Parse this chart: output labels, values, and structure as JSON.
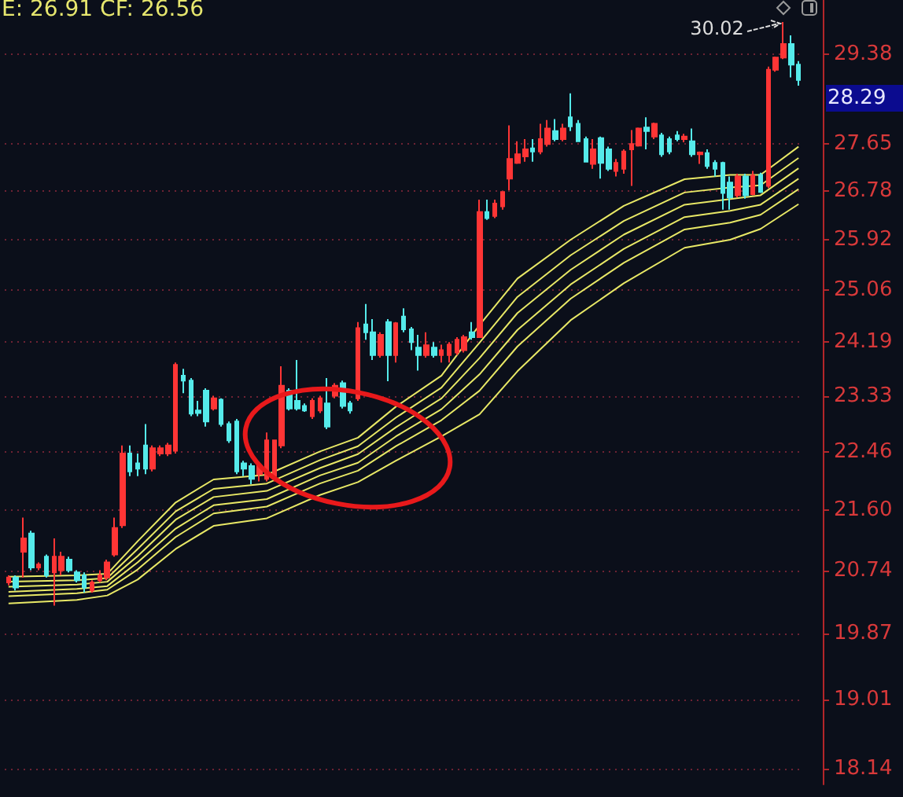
{
  "chart_data": {
    "type": "candlestick",
    "log": true,
    "grid": "y",
    "marker": "none",
    "categories": [
      null,
      null,
      null,
      null,
      null,
      null,
      null,
      null,
      null,
      null,
      null,
      null,
      null,
      null,
      null,
      null,
      null,
      null,
      null,
      null,
      null,
      null,
      null,
      null,
      null,
      null,
      null,
      null,
      null,
      null,
      null,
      null,
      null,
      null,
      null,
      null,
      null,
      null,
      null,
      null,
      null,
      null,
      null,
      null,
      null,
      null,
      null,
      null,
      null,
      null,
      null,
      null,
      null,
      null,
      null,
      null,
      null,
      null,
      null,
      null,
      null,
      null,
      null,
      null,
      null,
      null,
      null,
      null,
      null,
      null,
      null,
      null,
      null,
      null,
      null,
      null,
      null,
      null,
      null,
      null,
      null,
      null,
      null,
      null,
      null,
      null,
      null,
      null,
      null,
      null,
      null,
      null,
      null,
      null,
      null,
      null,
      null,
      null,
      null,
      null,
      null,
      null,
      null,
      null,
      null
    ],
    "ohlc": [
      [
        20.57,
        20.67,
        20.53,
        20.64
      ],
      [
        20.64,
        20.67,
        20.46,
        20.5
      ],
      [
        21.0,
        21.49,
        20.64,
        21.19
      ],
      [
        21.26,
        21.3,
        20.74,
        20.78
      ],
      [
        20.78,
        20.85,
        20.74,
        20.82
      ],
      [
        20.93,
        20.96,
        20.64,
        20.67
      ],
      [
        20.71,
        21.19,
        20.25,
        20.93
      ],
      [
        20.74,
        21.0,
        20.67,
        20.93
      ],
      [
        20.89,
        20.93,
        20.71,
        20.74
      ],
      [
        20.71,
        20.74,
        20.57,
        20.6
      ],
      [
        20.67,
        20.71,
        20.43,
        20.5
      ],
      [
        20.46,
        20.6,
        20.43,
        20.57
      ],
      [
        20.6,
        20.74,
        20.57,
        20.67
      ],
      [
        20.64,
        20.89,
        20.6,
        20.85
      ],
      [
        20.96,
        21.49,
        20.93,
        21.34
      ],
      [
        21.38,
        22.56,
        21.34,
        22.44
      ],
      [
        22.44,
        22.56,
        22.1,
        22.17
      ],
      [
        22.29,
        22.44,
        22.1,
        22.21
      ],
      [
        22.56,
        22.89,
        22.13,
        22.21
      ],
      [
        22.21,
        22.56,
        22.17,
        22.52
      ],
      [
        22.44,
        22.56,
        22.4,
        22.52
      ],
      [
        22.44,
        22.6,
        22.4,
        22.56
      ],
      [
        22.48,
        23.86,
        22.44,
        23.82
      ],
      [
        23.65,
        23.76,
        23.37,
        23.57
      ],
      [
        23.57,
        23.61,
        23.01,
        23.05
      ],
      [
        23.1,
        23.25,
        23.01,
        23.06
      ],
      [
        23.41,
        23.45,
        22.85,
        22.93
      ],
      [
        23.13,
        23.33,
        23.1,
        23.29
      ],
      [
        23.27,
        23.29,
        22.85,
        22.89
      ],
      [
        22.89,
        22.93,
        22.6,
        22.64
      ],
      [
        22.93,
        22.97,
        22.13,
        22.17
      ],
      [
        22.29,
        22.33,
        22.1,
        22.21
      ],
      [
        22.25,
        22.29,
        21.98,
        22.06
      ],
      [
        22.13,
        22.29,
        22.02,
        22.25
      ],
      [
        22.06,
        22.76,
        22.02,
        22.64
      ],
      [
        22.1,
        22.64,
        22.02,
        22.64
      ],
      [
        22.56,
        23.8,
        22.52,
        23.49
      ],
      [
        23.41,
        23.45,
        23.1,
        23.13
      ],
      [
        23.25,
        23.9,
        23.1,
        23.13
      ],
      [
        23.17,
        23.21,
        23.08,
        23.1
      ],
      [
        23.01,
        23.29,
        22.97,
        23.25
      ],
      [
        23.1,
        23.33,
        23.06,
        23.29
      ],
      [
        23.21,
        23.61,
        22.81,
        22.85
      ],
      [
        23.33,
        23.53,
        23.29,
        23.49
      ],
      [
        23.53,
        23.57,
        23.13,
        23.17
      ],
      [
        23.21,
        23.25,
        23.05,
        23.1
      ],
      [
        23.29,
        24.52,
        23.25,
        24.42
      ],
      [
        24.48,
        24.82,
        24.23,
        24.35
      ],
      [
        24.35,
        24.57,
        23.9,
        23.98
      ],
      [
        23.98,
        24.35,
        23.94,
        24.31
      ],
      [
        24.52,
        24.57,
        23.56,
        23.98
      ],
      [
        23.98,
        24.52,
        23.86,
        24.5
      ],
      [
        24.61,
        24.75,
        24.35,
        24.4
      ],
      [
        24.4,
        24.44,
        24.06,
        24.19
      ],
      [
        24.1,
        24.31,
        23.73,
        23.98
      ],
      [
        23.98,
        24.35,
        23.94,
        24.14
      ],
      [
        24.1,
        24.19,
        23.94,
        23.98
      ],
      [
        23.98,
        24.15,
        23.86,
        24.06
      ],
      [
        23.98,
        24.19,
        23.86,
        24.15
      ],
      [
        24.02,
        24.27,
        23.98,
        24.23
      ],
      [
        24.06,
        24.31,
        24.02,
        24.27
      ],
      [
        24.35,
        24.52,
        24.23,
        24.27
      ],
      [
        24.27,
        26.63,
        24.27,
        26.41
      ],
      [
        26.41,
        26.63,
        26.27,
        26.3
      ],
      [
        26.34,
        26.63,
        26.3,
        26.56
      ],
      [
        26.51,
        26.77,
        26.45,
        26.77
      ],
      [
        27.01,
        28.0,
        26.8,
        27.37
      ],
      [
        27.3,
        27.7,
        27.28,
        27.46
      ],
      [
        27.42,
        27.74,
        27.32,
        27.55
      ],
      [
        27.57,
        27.74,
        27.32,
        27.51
      ],
      [
        27.51,
        28.03,
        27.46,
        27.74
      ],
      [
        27.65,
        28.1,
        27.6,
        27.94
      ],
      [
        27.89,
        28.12,
        27.7,
        27.74
      ],
      [
        27.74,
        28.03,
        27.7,
        27.94
      ],
      [
        28.15,
        28.61,
        27.89,
        27.98
      ],
      [
        28.03,
        28.1,
        27.7,
        27.7
      ],
      [
        27.74,
        27.79,
        27.32,
        27.32
      ],
      [
        27.28,
        27.74,
        27.19,
        27.55
      ],
      [
        27.76,
        27.79,
        27.01,
        27.3
      ],
      [
        27.55,
        27.6,
        27.15,
        27.19
      ],
      [
        27.15,
        27.37,
        27.05,
        27.3
      ],
      [
        27.19,
        27.55,
        27.1,
        27.51
      ],
      [
        27.55,
        27.91,
        26.88,
        27.65
      ],
      [
        27.62,
        27.96,
        27.6,
        27.94
      ],
      [
        27.96,
        28.15,
        27.55,
        27.89
      ],
      [
        27.79,
        28.05,
        27.74,
        28.03
      ],
      [
        27.81,
        27.86,
        27.41,
        27.46
      ],
      [
        27.74,
        27.79,
        27.46,
        27.51
      ],
      [
        27.81,
        27.89,
        27.7,
        27.74
      ],
      [
        27.74,
        27.84,
        27.68,
        27.79
      ],
      [
        27.7,
        27.94,
        27.41,
        27.46
      ],
      [
        27.46,
        27.51,
        27.28,
        27.49
      ],
      [
        27.48,
        27.55,
        27.19,
        27.24
      ],
      [
        27.3,
        27.35,
        27.05,
        27.19
      ],
      [
        27.3,
        27.32,
        26.45,
        26.75
      ],
      [
        26.94,
        27.05,
        26.45,
        26.67
      ],
      [
        26.71,
        27.1,
        26.67,
        27.05
      ],
      [
        27.05,
        27.1,
        26.65,
        26.71
      ],
      [
        26.73,
        27.15,
        26.71,
        27.07
      ],
      [
        27.08,
        27.12,
        26.75,
        26.77
      ],
      [
        26.88,
        29.13,
        26.84,
        29.07
      ],
      [
        29.07,
        29.33,
        29.03,
        29.31
      ],
      [
        29.31,
        30.02,
        29.28,
        29.58
      ],
      [
        29.58,
        29.75,
        28.92,
        29.17
      ],
      [
        29.17,
        29.24,
        28.76,
        28.87
      ]
    ],
    "series": [
      {
        "type": "line",
        "color": "#e8e866",
        "values": [
          20.65,
          null,
          null,
          null,
          null,
          null,
          null,
          null,
          null,
          20.67,
          null,
          null,
          null,
          20.69,
          null,
          null,
          null,
          21.15,
          null,
          null,
          null,
          null,
          21.71,
          null,
          null,
          null,
          null,
          22.05,
          null,
          null,
          null,
          null,
          null,
          null,
          22.12,
          null,
          null,
          null,
          null,
          null,
          null,
          22.47,
          null,
          null,
          null,
          null,
          22.68,
          null,
          null,
          null,
          null,
          23.16,
          null,
          null,
          null,
          null,
          null,
          23.65,
          null,
          null,
          null,
          null,
          24.47,
          null,
          null,
          null,
          null,
          25.25,
          null,
          null,
          null,
          null,
          null,
          null,
          25.92,
          null,
          null,
          null,
          null,
          null,
          null,
          26.52,
          null,
          null,
          null,
          null,
          null,
          null,
          null,
          27.0,
          null,
          null,
          null,
          null,
          null,
          27.08,
          null,
          null,
          null,
          27.08,
          null,
          null,
          null,
          null,
          27.6
        ]
      },
      {
        "type": "line",
        "color": "#e8e866",
        "values": [
          20.58,
          null,
          null,
          null,
          null,
          null,
          null,
          null,
          null,
          20.6,
          null,
          null,
          null,
          20.63,
          null,
          null,
          null,
          21.04,
          null,
          null,
          null,
          null,
          21.58,
          null,
          null,
          null,
          null,
          21.91,
          null,
          null,
          null,
          null,
          null,
          null,
          21.99,
          null,
          null,
          null,
          null,
          null,
          null,
          22.34,
          null,
          null,
          null,
          null,
          22.55,
          null,
          null,
          null,
          null,
          22.99,
          null,
          null,
          null,
          null,
          null,
          23.46,
          null,
          null,
          null,
          null,
          24.18,
          null,
          null,
          null,
          null,
          24.94,
          null,
          null,
          null,
          null,
          null,
          null,
          25.65,
          null,
          null,
          null,
          null,
          null,
          null,
          26.25,
          null,
          null,
          null,
          null,
          null,
          null,
          null,
          26.76,
          null,
          null,
          null,
          null,
          null,
          26.85,
          null,
          null,
          null,
          26.89,
          null,
          null,
          null,
          null,
          27.39
        ]
      },
      {
        "type": "line",
        "color": "#e8e866",
        "values": [
          20.51,
          null,
          null,
          null,
          null,
          null,
          null,
          null,
          null,
          20.54,
          null,
          null,
          null,
          20.58,
          null,
          null,
          null,
          20.94,
          null,
          null,
          null,
          null,
          21.46,
          null,
          null,
          null,
          null,
          21.79,
          null,
          null,
          null,
          null,
          null,
          null,
          21.88,
          null,
          null,
          null,
          null,
          null,
          null,
          22.22,
          null,
          null,
          null,
          null,
          22.43,
          null,
          null,
          null,
          null,
          22.84,
          null,
          null,
          null,
          null,
          null,
          23.29,
          null,
          null,
          null,
          null,
          23.93,
          null,
          null,
          null,
          null,
          24.67,
          null,
          null,
          null,
          null,
          null,
          null,
          25.4,
          null,
          null,
          null,
          null,
          null,
          null,
          26.01,
          null,
          null,
          null,
          null,
          null,
          null,
          null,
          26.54,
          null,
          null,
          null,
          null,
          null,
          26.64,
          null,
          null,
          null,
          26.71,
          null,
          null,
          null,
          null,
          27.2
        ]
      },
      {
        "type": "line",
        "color": "#e8e866",
        "values": [
          20.44,
          null,
          null,
          null,
          null,
          null,
          null,
          null,
          null,
          20.48,
          null,
          null,
          null,
          20.52,
          null,
          null,
          null,
          20.85,
          null,
          null,
          null,
          null,
          21.33,
          null,
          null,
          null,
          null,
          21.67,
          null,
          null,
          null,
          null,
          null,
          null,
          21.76,
          null,
          null,
          null,
          null,
          null,
          null,
          22.11,
          null,
          null,
          null,
          null,
          22.3,
          null,
          null,
          null,
          null,
          22.7,
          null,
          null,
          null,
          null,
          null,
          23.12,
          null,
          null,
          null,
          null,
          23.67,
          null,
          null,
          null,
          null,
          24.39,
          null,
          null,
          null,
          null,
          null,
          null,
          25.15,
          null,
          null,
          null,
          null,
          null,
          null,
          25.76,
          null,
          null,
          null,
          null,
          null,
          null,
          null,
          26.32,
          null,
          null,
          null,
          null,
          null,
          26.43,
          null,
          null,
          null,
          26.54,
          null,
          null,
          null,
          null,
          27.01
        ]
      },
      {
        "type": "line",
        "color": "#e8e866",
        "values": [
          20.38,
          null,
          null,
          null,
          null,
          null,
          null,
          null,
          null,
          20.42,
          null,
          null,
          null,
          20.47,
          null,
          null,
          null,
          20.75,
          null,
          null,
          null,
          null,
          21.21,
          null,
          null,
          null,
          null,
          21.55,
          null,
          null,
          null,
          null,
          null,
          null,
          21.65,
          null,
          null,
          null,
          null,
          null,
          null,
          21.99,
          null,
          null,
          null,
          null,
          22.18,
          null,
          null,
          null,
          null,
          22.55,
          null,
          null,
          null,
          null,
          null,
          22.95,
          null,
          null,
          null,
          null,
          23.41,
          null,
          null,
          null,
          null,
          24.12,
          null,
          null,
          null,
          null,
          null,
          null,
          24.91,
          null,
          null,
          null,
          null,
          null,
          null,
          25.52,
          null,
          null,
          null,
          null,
          null,
          null,
          null,
          26.1,
          null,
          null,
          null,
          null,
          null,
          26.22,
          null,
          null,
          null,
          26.36,
          null,
          null,
          null,
          null,
          26.82
        ]
      },
      {
        "type": "line",
        "color": "#e8e866",
        "values": [
          20.28,
          null,
          null,
          null,
          null,
          null,
          null,
          null,
          null,
          20.33,
          null,
          null,
          null,
          20.39,
          null,
          null,
          null,
          20.61,
          null,
          null,
          null,
          null,
          21.04,
          null,
          null,
          null,
          null,
          21.37,
          null,
          null,
          null,
          null,
          null,
          null,
          21.48,
          null,
          null,
          null,
          null,
          null,
          null,
          21.82,
          null,
          null,
          null,
          null,
          22.01,
          null,
          null,
          null,
          null,
          22.33,
          null,
          null,
          null,
          null,
          null,
          22.7,
          null,
          null,
          null,
          null,
          23.04,
          null,
          null,
          null,
          null,
          23.72,
          null,
          null,
          null,
          null,
          null,
          null,
          24.55,
          null,
          null,
          null,
          null,
          null,
          null,
          25.17,
          null,
          null,
          null,
          null,
          null,
          null,
          null,
          25.78,
          null,
          null,
          null,
          null,
          null,
          25.92,
          null,
          null,
          null,
          26.11,
          null,
          null,
          null,
          null,
          26.55
        ]
      }
    ],
    "ylim": [
      17.95,
      30.47
    ],
    "yticks": [
      29.38,
      27.65,
      26.78,
      25.92,
      25.06,
      24.19,
      23.33,
      22.46,
      {
        "value": 21.6,
        "label": "21.60"
      },
      20.74,
      19.87,
      19.01,
      18.14
    ],
    "annotations": [
      "E: 26.91  CF: 26.56",
      "30.02",
      "28.29"
    ]
  }
}
